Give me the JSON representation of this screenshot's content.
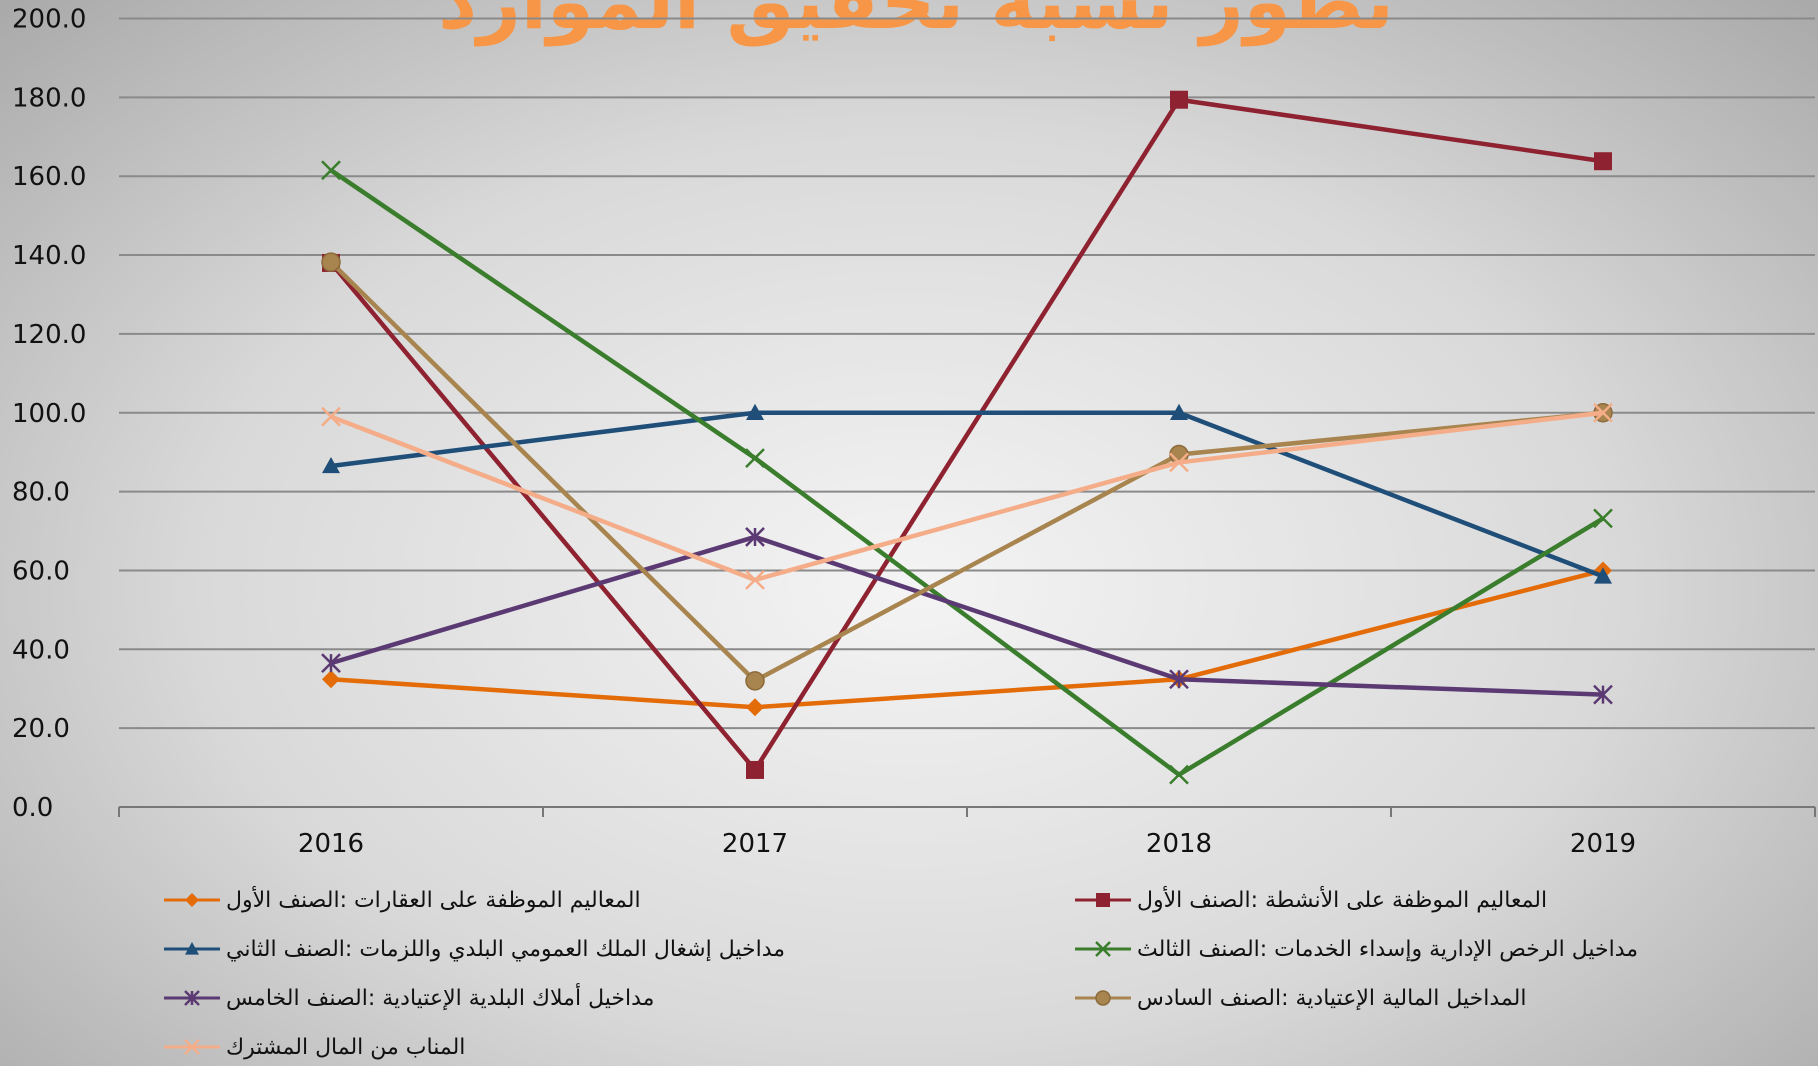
{
  "chart_data": {
    "type": "line",
    "title": "تطور نسبة تحقيق الموارد",
    "categories": [
      "2016",
      "2017",
      "2018",
      "2019"
    ],
    "ylim": [
      0,
      200
    ],
    "yticks": [
      {
        "value": 0,
        "label": "0.0"
      },
      {
        "value": 20,
        "label": "20.0"
      },
      {
        "value": 40,
        "label": "40.0"
      },
      {
        "value": 60,
        "label": "60.0"
      },
      {
        "value": 80,
        "label": "80.0"
      },
      {
        "value": 100,
        "label": "100.0"
      },
      {
        "value": 120,
        "label": "120.0"
      },
      {
        "value": 140,
        "label": "140.0"
      },
      {
        "value": 160,
        "label": "160.0"
      },
      {
        "value": 180,
        "label": "180.0"
      },
      {
        "value": 200,
        "label": "200.0"
      }
    ],
    "grid": true,
    "legend": "bottom",
    "series": [
      {
        "name": "المعاليم الموظفة على العقارات :الصنف الأول",
        "color": "#e36c09",
        "marker": "diamond",
        "values": [
          32.4,
          25.3,
          32.4,
          60
        ]
      },
      {
        "name": "المعاليم الموظفة على الأنشطة :الصنف الأول",
        "color": "#8e2230",
        "marker": "square",
        "values": [
          138,
          9.4,
          179.4,
          163.8
        ]
      },
      {
        "name": "مداخيل إشغال الملك العمومي البلدي واللزمات :الصنف الثاني",
        "color": "#1f4e79",
        "marker": "triangle",
        "values": [
          86.5,
          100,
          100,
          58.5
        ]
      },
      {
        "name": "مداخيل الرخص الإدارية وإسداء الخدمات :الصنف الثالث",
        "color": "#3a7d2c",
        "marker": "x",
        "values": [
          161.5,
          88.5,
          8.2,
          73.2
        ]
      },
      {
        "name": "مداخيل أملاك البلدية الإعتيادية :الصنف الخامس",
        "color": "#5b3a73",
        "marker": "star",
        "values": [
          36.5,
          68.5,
          32.4,
          28.5
        ]
      },
      {
        "name": "المداخيل المالية الإعتيادية :الصنف السادس",
        "color": "#a8844f",
        "marker": "circle",
        "values": [
          138.2,
          32,
          89.4,
          100
        ]
      },
      {
        "name": "المناب من المال المشترك",
        "color": "#f4ad88",
        "marker": "x",
        "values": [
          99,
          57.6,
          87.4,
          100
        ]
      }
    ]
  }
}
